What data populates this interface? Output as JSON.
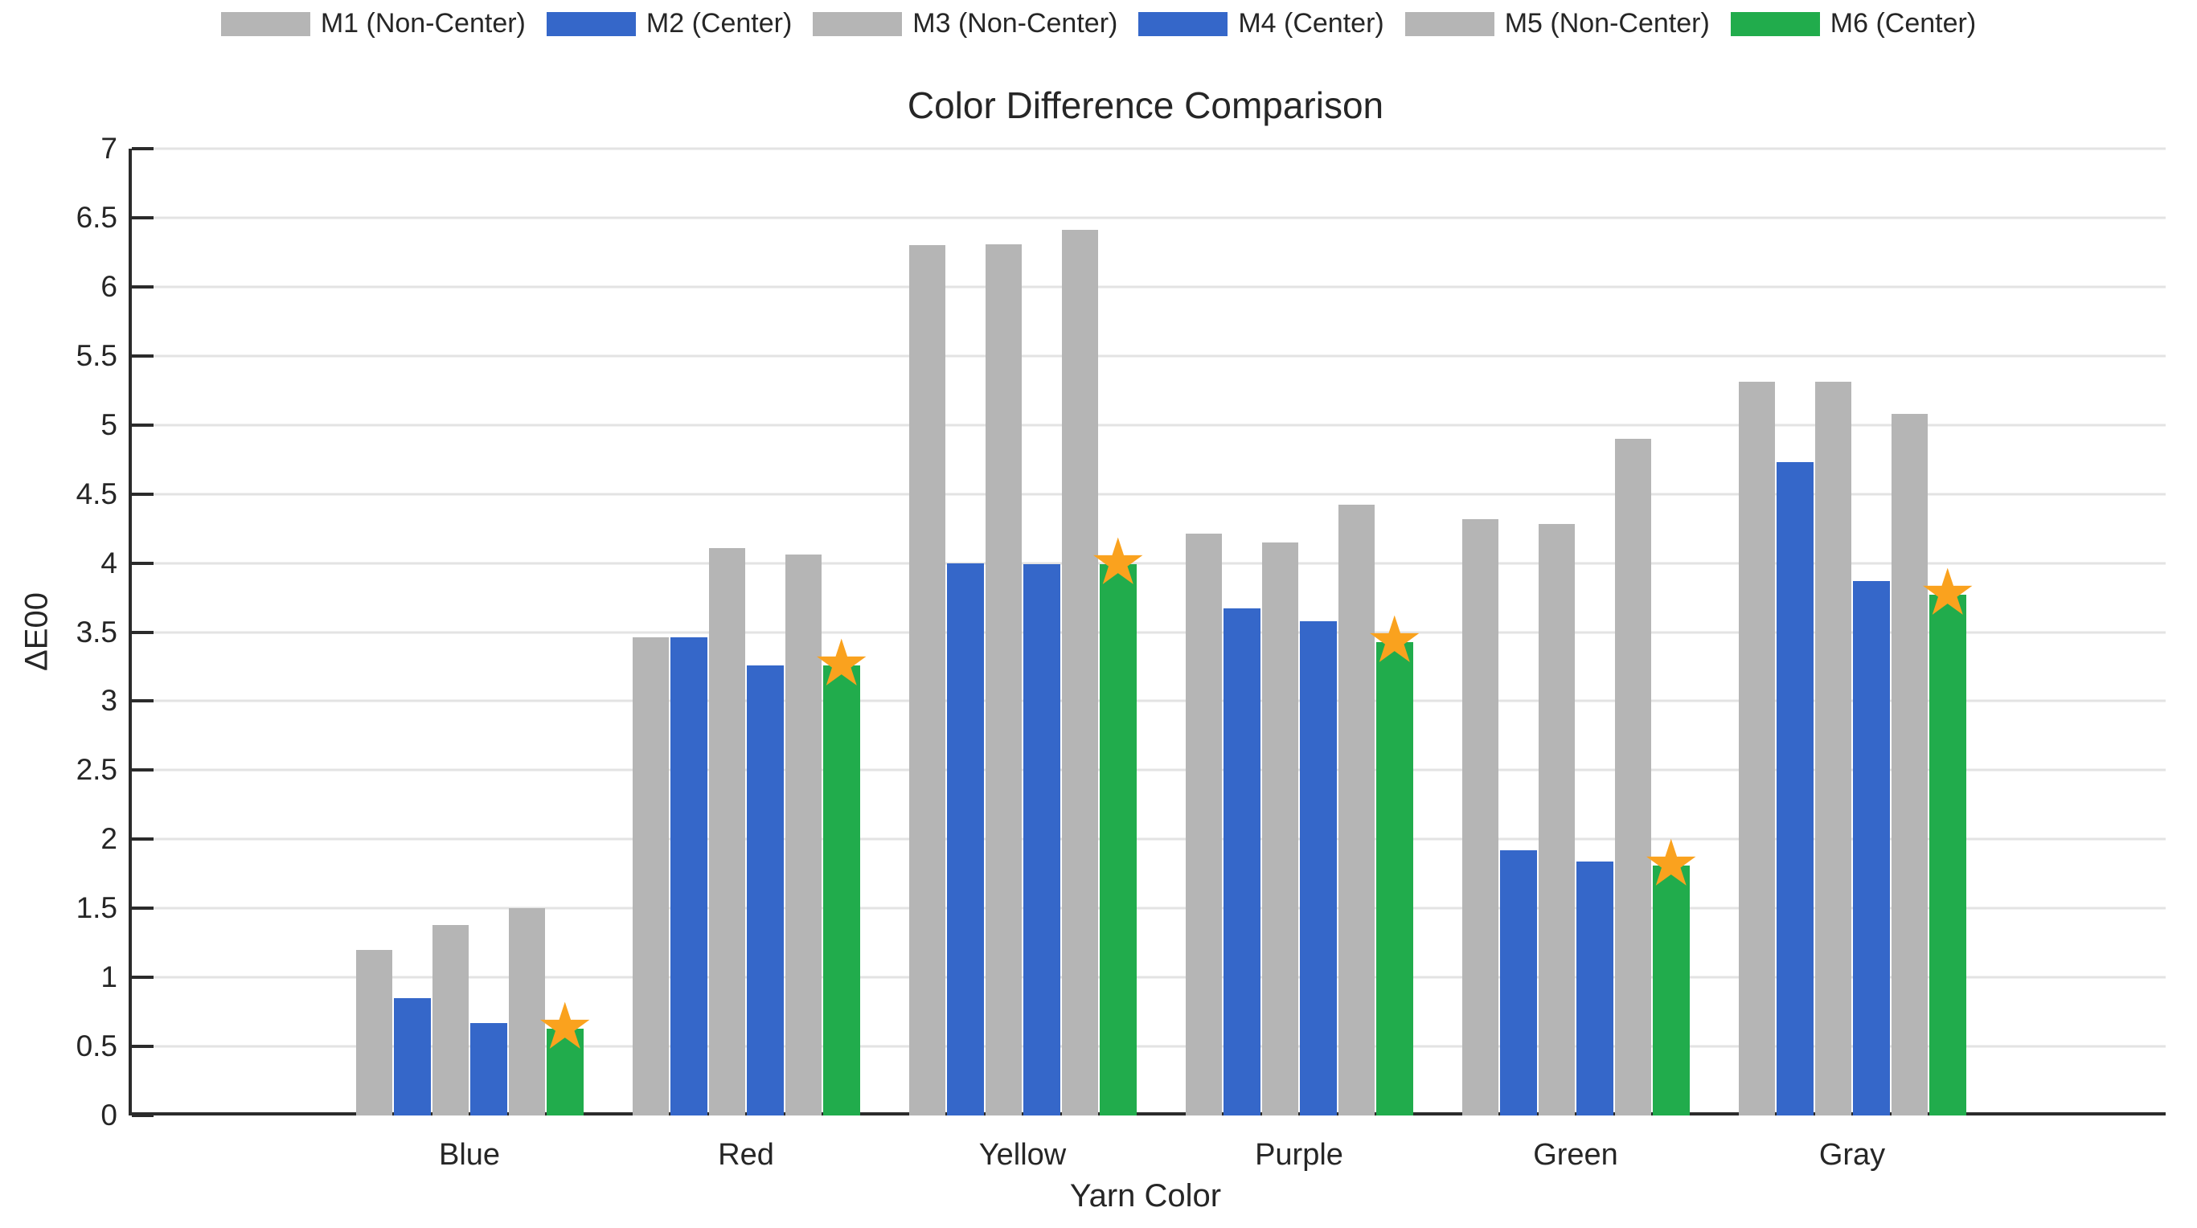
{
  "chart_data": {
    "type": "bar",
    "title": "Color Difference Comparison",
    "xlabel": "Yarn Color",
    "ylabel": "ΔE00",
    "categories": [
      "Blue",
      "Red",
      "Yellow",
      "Purple",
      "Green",
      "Gray"
    ],
    "series": [
      {
        "name": "M1 (Non-Center)",
        "color": "#B5B5B5",
        "values": [
          1.2,
          3.46,
          6.3,
          4.21,
          4.32,
          5.31
        ]
      },
      {
        "name": "M2 (Center)",
        "color": "#3567C9",
        "values": [
          0.85,
          3.46,
          4.0,
          3.67,
          1.92,
          4.73
        ]
      },
      {
        "name": "M3 (Non-Center)",
        "color": "#B5B5B5",
        "values": [
          1.38,
          4.11,
          6.31,
          4.15,
          4.28,
          5.31
        ]
      },
      {
        "name": "M4 (Center)",
        "color": "#3567C9",
        "values": [
          0.67,
          3.26,
          3.99,
          3.58,
          1.84,
          3.87
        ]
      },
      {
        "name": "M5 (Non-Center)",
        "color": "#B5B5B5",
        "values": [
          1.5,
          4.06,
          6.41,
          4.42,
          4.9,
          5.08
        ]
      },
      {
        "name": "M6 (Center)",
        "color": "#21AC4C",
        "marker": "star",
        "marker_glyph": "★",
        "marker_color": "#FAA21E",
        "values": [
          0.63,
          3.26,
          3.99,
          3.43,
          1.81,
          3.77
        ]
      }
    ],
    "ylim": [
      0,
      7
    ],
    "ytick_step": 0.5,
    "ytick_labels": [
      "0",
      "0.5",
      "1",
      "1.5",
      "2",
      "2.5",
      "3",
      "3.5",
      "4",
      "4.5",
      "5",
      "5.5",
      "6",
      "6.5",
      "7"
    ],
    "grid": true,
    "legend_position": "top"
  },
  "colors": {
    "axis": "#2B2B2B",
    "grid": "#E3E3E3",
    "text": "#262626",
    "background": "#FFFFFF"
  }
}
